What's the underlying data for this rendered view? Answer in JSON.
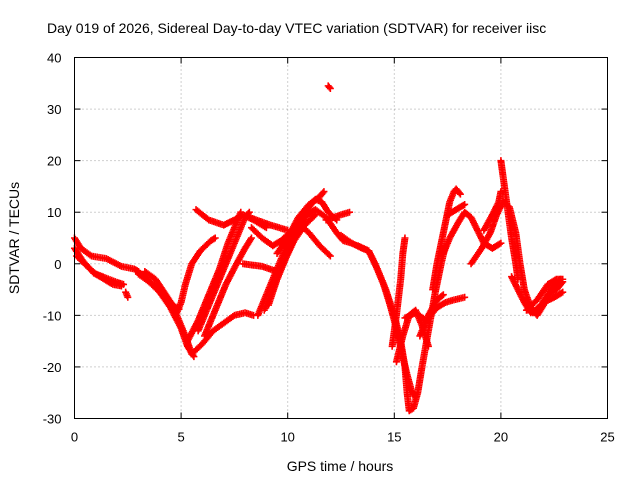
{
  "chart_data": {
    "type": "scatter",
    "title": "Day 019 of 2026, Sidereal Day-to-day VTEC variation (SDTVAR) for receiver iisc",
    "xlabel": "GPS time / hours",
    "ylabel": "SDTVAR / TECUs",
    "xlim": [
      0,
      25
    ],
    "ylim": [
      -30,
      40
    ],
    "x_ticks": [
      "0",
      "5",
      "10",
      "15",
      "20",
      "25"
    ],
    "y_ticks": [
      "-30",
      "-20",
      "-10",
      "0",
      "10",
      "20",
      "30",
      "40"
    ],
    "grid": true,
    "marker": "+",
    "color": "#ff0000",
    "tracks": [
      [
        [
          0.0,
          5.0
        ],
        [
          0.3,
          3.0
        ],
        [
          0.8,
          1.5
        ],
        [
          1.5,
          1.0
        ],
        [
          2.2,
          -0.5
        ],
        [
          2.8,
          -1.0
        ],
        [
          3.0,
          -1.5
        ]
      ],
      [
        [
          0.0,
          3.0
        ],
        [
          0.4,
          0.5
        ],
        [
          0.9,
          -1.8
        ],
        [
          1.5,
          -2.8
        ],
        [
          2.0,
          -3.6
        ],
        [
          2.3,
          -4.0
        ]
      ],
      [
        [
          0.1,
          1.5
        ],
        [
          0.6,
          -0.5
        ],
        [
          1.0,
          -2.0
        ],
        [
          1.4,
          -3.0
        ],
        [
          1.8,
          -4.0
        ],
        [
          2.2,
          -4.3
        ]
      ],
      [
        [
          2.4,
          -5.5
        ],
        [
          2.5,
          -6.5
        ]
      ],
      [
        [
          2.8,
          -1.0
        ],
        [
          3.3,
          -2.5
        ],
        [
          3.8,
          -4.5
        ],
        [
          4.3,
          -7.0
        ],
        [
          4.8,
          -10.0
        ],
        [
          5.2,
          -14.0
        ],
        [
          5.5,
          -17.5
        ],
        [
          6.0,
          -15.5
        ],
        [
          6.5,
          -13.0
        ],
        [
          7.0,
          -11.5
        ],
        [
          7.5,
          -10.0
        ],
        [
          8.0,
          -9.5
        ],
        [
          8.4,
          -10.0
        ]
      ],
      [
        [
          3.0,
          -2.0
        ],
        [
          3.5,
          -3.5
        ],
        [
          4.0,
          -5.5
        ],
        [
          4.5,
          -8.5
        ],
        [
          5.0,
          -12.5
        ],
        [
          5.3,
          -16.0
        ],
        [
          5.6,
          -18.0
        ]
      ],
      [
        [
          3.3,
          -1.5
        ],
        [
          3.8,
          -3.0
        ],
        [
          4.2,
          -5.5
        ],
        [
          4.6,
          -8.0
        ],
        [
          4.9,
          -8.8
        ]
      ],
      [
        [
          4.8,
          -9.5
        ],
        [
          5.0,
          -7.5
        ],
        [
          5.2,
          -4.0
        ],
        [
          5.5,
          0.0
        ],
        [
          5.9,
          2.5
        ],
        [
          6.4,
          4.5
        ],
        [
          6.6,
          5.0
        ]
      ],
      [
        [
          5.3,
          -15.0
        ],
        [
          5.8,
          -11.0
        ],
        [
          6.3,
          -6.0
        ],
        [
          6.8,
          -1.0
        ],
        [
          7.2,
          4.0
        ],
        [
          7.6,
          8.0
        ],
        [
          7.8,
          10.0
        ]
      ],
      [
        [
          5.8,
          -13.0
        ],
        [
          6.3,
          -8.0
        ],
        [
          6.8,
          -3.0
        ],
        [
          7.3,
          2.0
        ],
        [
          7.7,
          6.0
        ],
        [
          8.0,
          9.0
        ],
        [
          8.2,
          10.0
        ]
      ],
      [
        [
          6.1,
          -14.0
        ],
        [
          6.6,
          -9.0
        ],
        [
          7.1,
          -4.0
        ],
        [
          7.6,
          0.0
        ],
        [
          8.0,
          3.0
        ],
        [
          8.3,
          5.0
        ]
      ],
      [
        [
          5.7,
          10.5
        ],
        [
          6.3,
          8.5
        ],
        [
          7.0,
          7.5
        ],
        [
          7.5,
          8.5
        ],
        [
          7.9,
          9.5
        ],
        [
          8.4,
          8.5
        ],
        [
          9.0,
          7.0
        ]
      ],
      [
        [
          8.3,
          7.0
        ],
        [
          8.8,
          5.0
        ],
        [
          9.3,
          3.5
        ],
        [
          9.7,
          4.5
        ],
        [
          10.2,
          6.5
        ],
        [
          10.6,
          7.5
        ],
        [
          11.0,
          6.0
        ],
        [
          11.5,
          3.5
        ],
        [
          12.0,
          1.5
        ]
      ],
      [
        [
          8.6,
          -10.0
        ],
        [
          9.0,
          -6.0
        ],
        [
          9.4,
          -2.0
        ],
        [
          9.8,
          2.0
        ],
        [
          10.2,
          5.0
        ],
        [
          10.6,
          8.0
        ],
        [
          11.0,
          11.0
        ],
        [
          11.3,
          12.5
        ],
        [
          11.6,
          12.0
        ],
        [
          11.9,
          10.0
        ],
        [
          12.3,
          8.5
        ]
      ],
      [
        [
          8.9,
          -9.0
        ],
        [
          9.3,
          -5.0
        ],
        [
          9.7,
          -1.0
        ],
        [
          10.1,
          3.0
        ],
        [
          10.5,
          6.5
        ],
        [
          10.9,
          9.5
        ],
        [
          11.3,
          10.5
        ],
        [
          11.8,
          9.0
        ],
        [
          12.3,
          6.0
        ],
        [
          12.6,
          4.5
        ],
        [
          13.0,
          4.0
        ]
      ],
      [
        [
          9.1,
          -8.0
        ],
        [
          9.5,
          -3.0
        ],
        [
          9.9,
          1.0
        ],
        [
          10.3,
          4.5
        ],
        [
          10.8,
          7.5
        ],
        [
          11.3,
          9.5
        ]
      ],
      [
        [
          9.5,
          2.0
        ],
        [
          10.0,
          5.0
        ],
        [
          10.5,
          9.0
        ],
        [
          11.0,
          11.5
        ],
        [
          11.5,
          13.0
        ],
        [
          11.7,
          14.0
        ]
      ],
      [
        [
          8.2,
          9.0
        ],
        [
          9.2,
          7.5
        ],
        [
          10.0,
          6.5
        ]
      ],
      [
        [
          7.9,
          0.0
        ],
        [
          8.8,
          -0.5
        ],
        [
          9.5,
          -1.5
        ]
      ],
      [
        [
          11.8,
          8.5
        ],
        [
          12.5,
          9.5
        ],
        [
          12.9,
          10.0
        ]
      ],
      [
        [
          11.9,
          34.5
        ],
        [
          12.0,
          34.0
        ]
      ],
      [
        [
          12.5,
          5.5
        ],
        [
          13.0,
          4.0
        ],
        [
          13.5,
          3.0
        ],
        [
          13.8,
          2.5
        ],
        [
          14.1,
          0.0
        ],
        [
          14.5,
          -4.0
        ],
        [
          14.8,
          -8.0
        ],
        [
          15.0,
          -11.0
        ],
        [
          15.2,
          -14.5
        ],
        [
          15.4,
          -18.0
        ],
        [
          15.6,
          -21.5
        ],
        [
          15.8,
          -24.5
        ],
        [
          16.0,
          -26.0
        ]
      ],
      [
        [
          13.3,
          3.5
        ],
        [
          13.8,
          2.5
        ],
        [
          14.2,
          -1.0
        ],
        [
          14.6,
          -5.0
        ],
        [
          15.0,
          -10.0
        ],
        [
          15.3,
          -15.0
        ],
        [
          15.5,
          -20.0
        ],
        [
          15.6,
          -25.0
        ],
        [
          15.7,
          -28.5
        ],
        [
          15.9,
          -28.0
        ],
        [
          16.1,
          -25.0
        ],
        [
          16.3,
          -20.0
        ],
        [
          16.6,
          -13.0
        ],
        [
          16.9,
          -6.0
        ],
        [
          17.2,
          0.0
        ],
        [
          17.4,
          3.5
        ]
      ],
      [
        [
          14.9,
          -16.0
        ],
        [
          15.1,
          -10.0
        ],
        [
          15.3,
          -3.0
        ],
        [
          15.4,
          2.0
        ],
        [
          15.5,
          5.0
        ]
      ],
      [
        [
          15.1,
          -19.0
        ],
        [
          15.4,
          -14.0
        ],
        [
          15.7,
          -10.0
        ],
        [
          16.0,
          -9.0
        ],
        [
          16.3,
          -12.0
        ],
        [
          16.6,
          -16.0
        ]
      ],
      [
        [
          15.5,
          -10.5
        ],
        [
          16.0,
          -9.5
        ],
        [
          16.5,
          -11.0
        ],
        [
          17.0,
          -8.5
        ],
        [
          17.4,
          -7.5
        ],
        [
          17.8,
          -7.0
        ],
        [
          18.3,
          -6.5
        ]
      ],
      [
        [
          16.2,
          -14.0
        ],
        [
          16.6,
          -10.0
        ],
        [
          17.0,
          -7.0
        ],
        [
          17.3,
          -6.0
        ]
      ],
      [
        [
          16.8,
          -5.0
        ],
        [
          17.0,
          0.0
        ],
        [
          17.2,
          4.0
        ],
        [
          17.4,
          8.0
        ],
        [
          17.6,
          12.0
        ],
        [
          17.8,
          14.0
        ],
        [
          17.9,
          14.5
        ],
        [
          18.1,
          13.5
        ]
      ],
      [
        [
          17.5,
          9.5
        ],
        [
          17.9,
          10.5
        ],
        [
          18.3,
          11.5
        ]
      ],
      [
        [
          17.3,
          2.0
        ],
        [
          17.6,
          5.0
        ],
        [
          18.0,
          8.0
        ],
        [
          18.3,
          10.0
        ],
        [
          18.6,
          9.0
        ],
        [
          18.9,
          6.5
        ],
        [
          19.2,
          4.0
        ],
        [
          19.6,
          3.0
        ],
        [
          20.0,
          4.0
        ]
      ],
      [
        [
          18.6,
          0.0
        ],
        [
          19.1,
          3.0
        ],
        [
          19.5,
          6.0
        ],
        [
          19.8,
          9.5
        ],
        [
          20.1,
          12.0
        ],
        [
          20.4,
          11.0
        ],
        [
          20.7,
          6.0
        ],
        [
          20.9,
          0.0
        ],
        [
          21.1,
          -5.0
        ],
        [
          21.4,
          -8.5
        ],
        [
          21.7,
          -10.0
        ],
        [
          22.0,
          -8.0
        ],
        [
          22.3,
          -5.0
        ],
        [
          22.8,
          -3.0
        ]
      ],
      [
        [
          19.2,
          6.5
        ],
        [
          19.6,
          9.5
        ],
        [
          19.9,
          12.0
        ],
        [
          20.0,
          14.0
        ]
      ],
      [
        [
          20.0,
          20.0
        ],
        [
          20.1,
          17.0
        ],
        [
          20.3,
          11.0
        ],
        [
          20.5,
          5.0
        ],
        [
          20.7,
          0.0
        ],
        [
          20.8,
          -3.0
        ]
      ],
      [
        [
          20.5,
          -2.5
        ],
        [
          20.8,
          -5.0
        ],
        [
          21.1,
          -7.5
        ],
        [
          21.4,
          -9.5
        ],
        [
          21.8,
          -8.5
        ],
        [
          22.2,
          -6.0
        ],
        [
          22.6,
          -5.0
        ],
        [
          22.9,
          -3.5
        ]
      ],
      [
        [
          21.2,
          -9.0
        ],
        [
          21.7,
          -7.0
        ],
        [
          22.2,
          -4.0
        ],
        [
          22.6,
          -3.0
        ],
        [
          22.9,
          -3.0
        ]
      ],
      [
        [
          21.5,
          -9.5
        ],
        [
          22.0,
          -7.5
        ],
        [
          22.5,
          -6.5
        ],
        [
          22.9,
          -5.5
        ]
      ]
    ]
  }
}
